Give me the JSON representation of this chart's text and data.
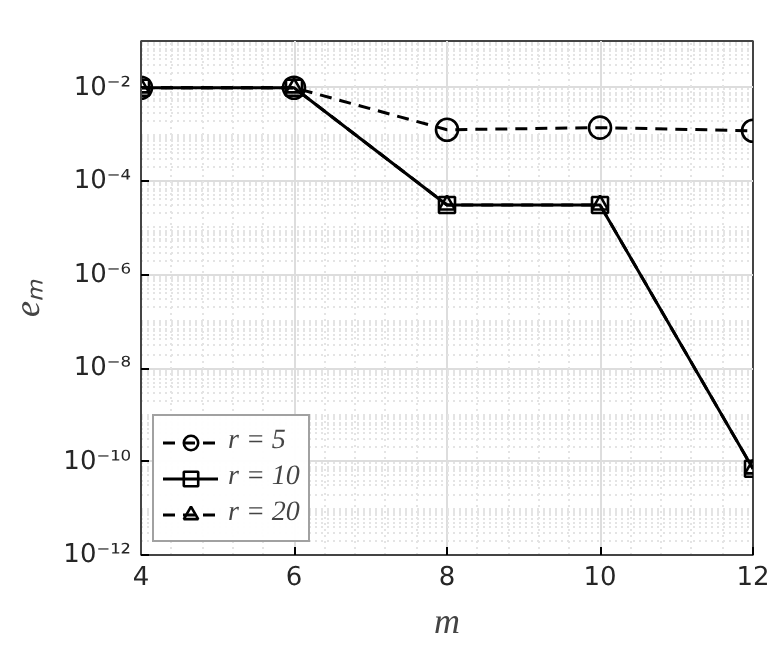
{
  "chart_data": {
    "type": "line",
    "xlabel": "m",
    "ylabel": "eₘ",
    "log": "y",
    "grid": true,
    "legend": "bottom left",
    "x": [
      4,
      6,
      8,
      10,
      12
    ],
    "xlim": [
      4,
      12
    ],
    "xticks": [
      4,
      6,
      8,
      10,
      12
    ],
    "ylim": [
      1e-12,
      0.1
    ],
    "yticks": [
      {
        "value": 1e-12,
        "label": "10⁻¹²"
      },
      {
        "value": 1e-10,
        "label": "10⁻¹⁰"
      },
      {
        "value": 1e-08,
        "label": "10⁻⁸"
      },
      {
        "value": 1e-06,
        "label": "10⁻⁶"
      },
      {
        "value": 0.0001,
        "label": "10⁻⁴"
      },
      {
        "value": 0.01,
        "label": "10⁻²"
      }
    ],
    "series": [
      {
        "name": "r = 5",
        "color": "#000000",
        "marker": "circle",
        "line_style": "dashed",
        "values": [
          0.01,
          0.01,
          0.00126,
          0.0014,
          0.0012
        ]
      },
      {
        "name": "r = 10",
        "color": "#000000",
        "marker": "square",
        "line_style": "solid",
        "values": [
          0.01,
          0.01,
          3.1e-05,
          3.1e-05,
          7e-11
        ]
      },
      {
        "name": "r = 20",
        "color": "#000000",
        "marker": "triangle",
        "line_style": "dashed",
        "values": [
          0.01,
          0.01,
          3.1e-05,
          3.1e-05,
          7e-11
        ]
      }
    ]
  }
}
